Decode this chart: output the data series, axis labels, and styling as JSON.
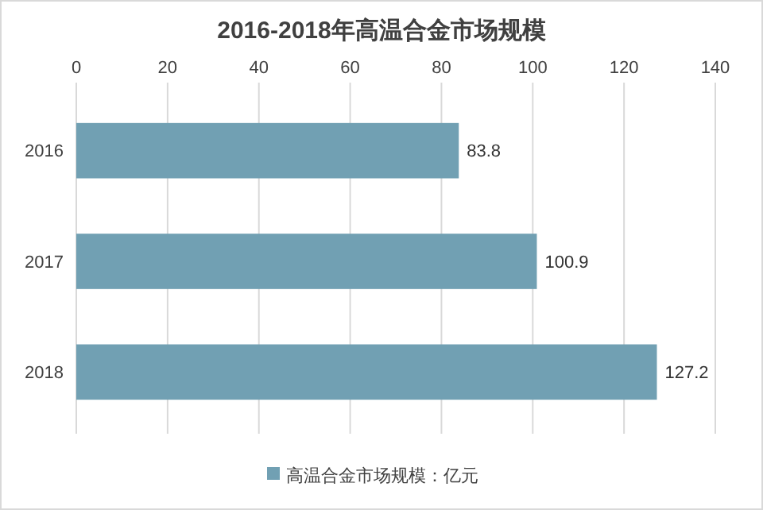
{
  "chart_data": {
    "type": "bar",
    "orientation": "horizontal",
    "title": "2016-2018年高温合金市场规模",
    "categories": [
      "2016",
      "2017",
      "2018"
    ],
    "series": [
      {
        "name": "高温合金市场规模：亿元",
        "color": "#71a0b3",
        "values": [
          83.8,
          100.9,
          127.2
        ]
      }
    ],
    "xlim": [
      0,
      140
    ],
    "xticks": [
      0,
      20,
      40,
      60,
      80,
      100,
      120,
      140
    ],
    "grid": "x",
    "legend": "bottom",
    "data_labels": true
  }
}
